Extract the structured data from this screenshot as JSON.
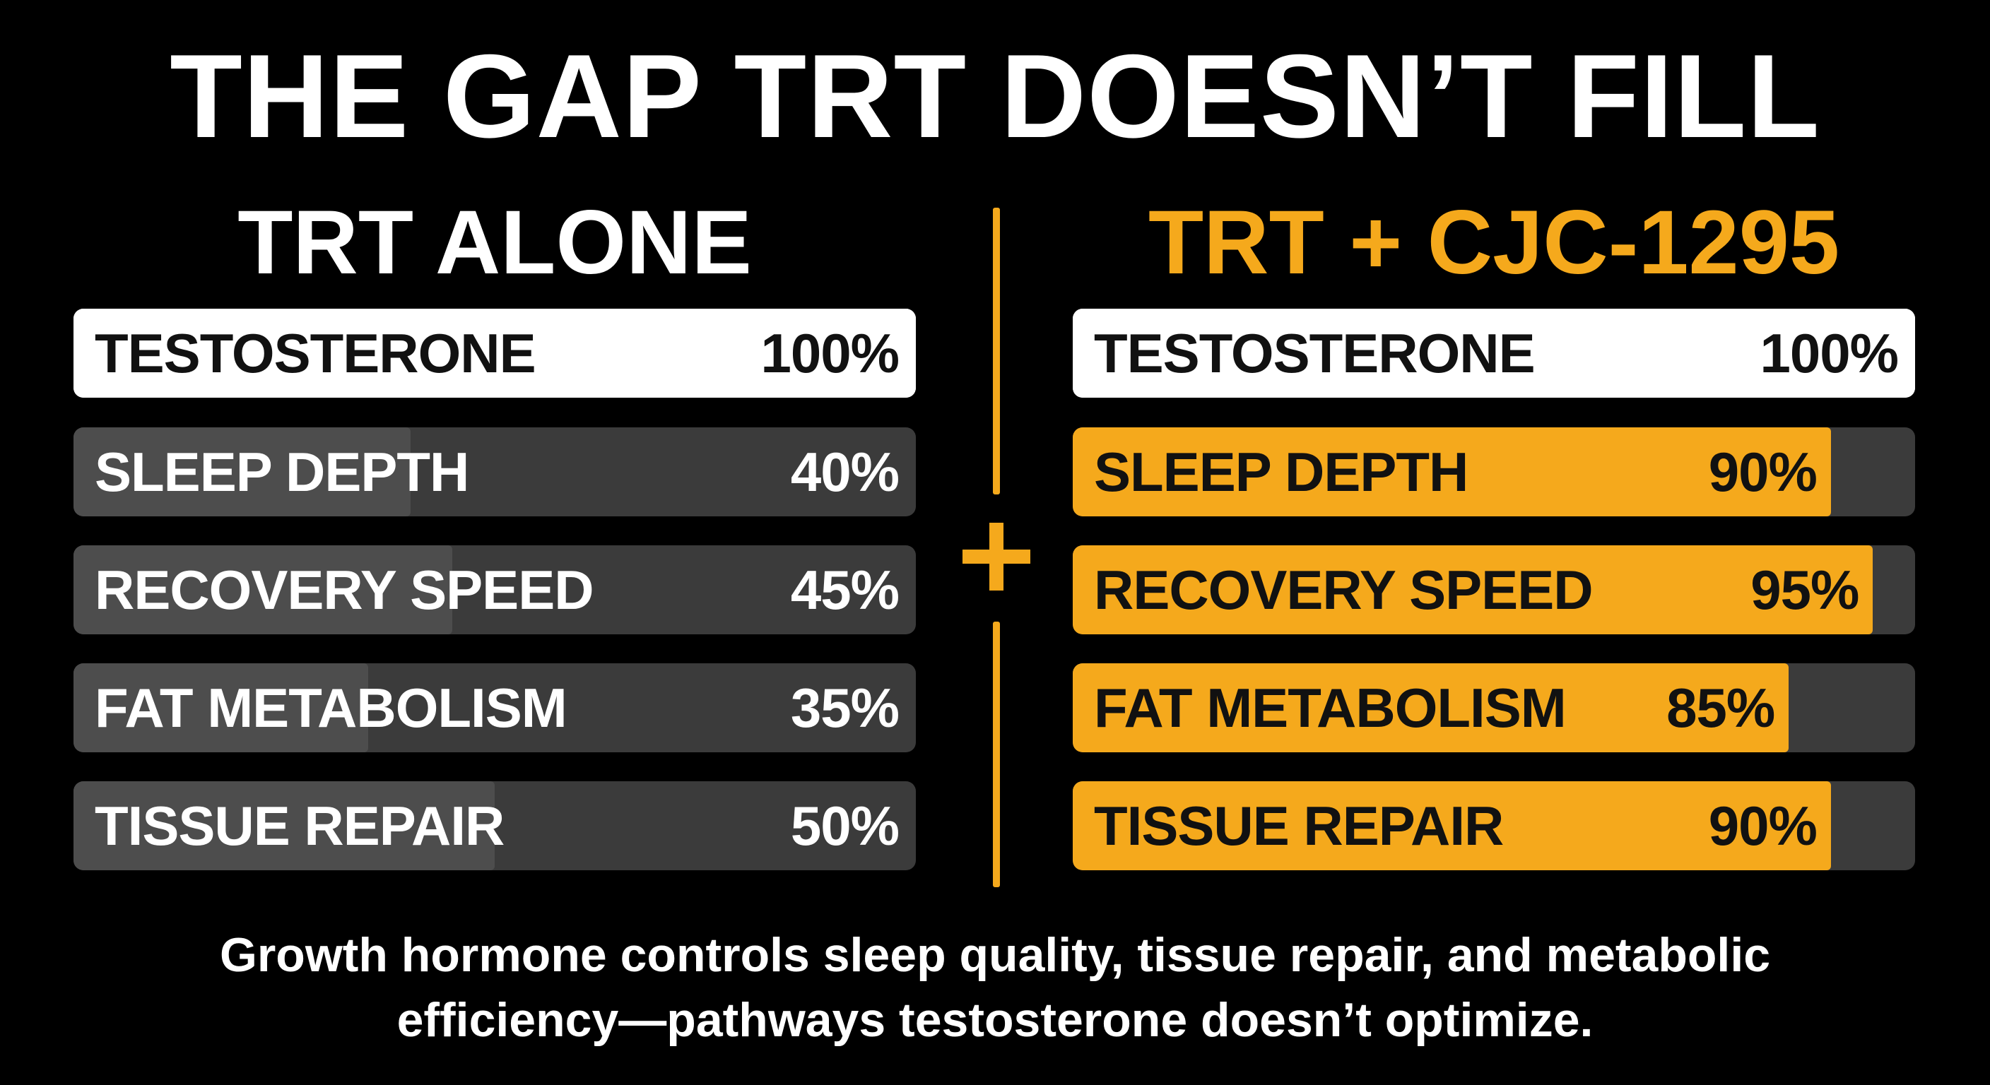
{
  "title": "THE GAP TRT DOESN’T FILL",
  "colors": {
    "background": "#000000",
    "accent": "#f5a91c",
    "white_bar": "#ffffff",
    "gray_fill": "#4d4d4d",
    "gray_track": "#3b3b3b"
  },
  "chart_data": [
    {
      "type": "bar",
      "title": "TRT ALONE",
      "categories": [
        "TESTOSTERONE",
        "SLEEP DEPTH",
        "RECOVERY SPEED",
        "FAT METABOLISM",
        "TISSUE REPAIR"
      ],
      "values": [
        100,
        40,
        45,
        35,
        50
      ],
      "value_labels": [
        "100%",
        "40%",
        "45%",
        "35%",
        "50%"
      ],
      "xlim": [
        0,
        100
      ],
      "orientation": "horizontal",
      "grid": false
    },
    {
      "type": "bar",
      "title": "TRT + CJC-1295",
      "categories": [
        "TESTOSTERONE",
        "SLEEP DEPTH",
        "RECOVERY SPEED",
        "FAT METABOLISM",
        "TISSUE REPAIR"
      ],
      "values": [
        100,
        90,
        95,
        85,
        90
      ],
      "value_labels": [
        "100%",
        "90%",
        "95%",
        "85%",
        "90%"
      ],
      "xlim": [
        0,
        100
      ],
      "orientation": "horizontal",
      "grid": false
    }
  ],
  "divider_icon": "plus-icon",
  "caption": {
    "line1": "Growth hormone controls sleep quality, tissue repair, and metabolic",
    "line2": "efficiency—pathways testosterone doesn’t optimize."
  }
}
